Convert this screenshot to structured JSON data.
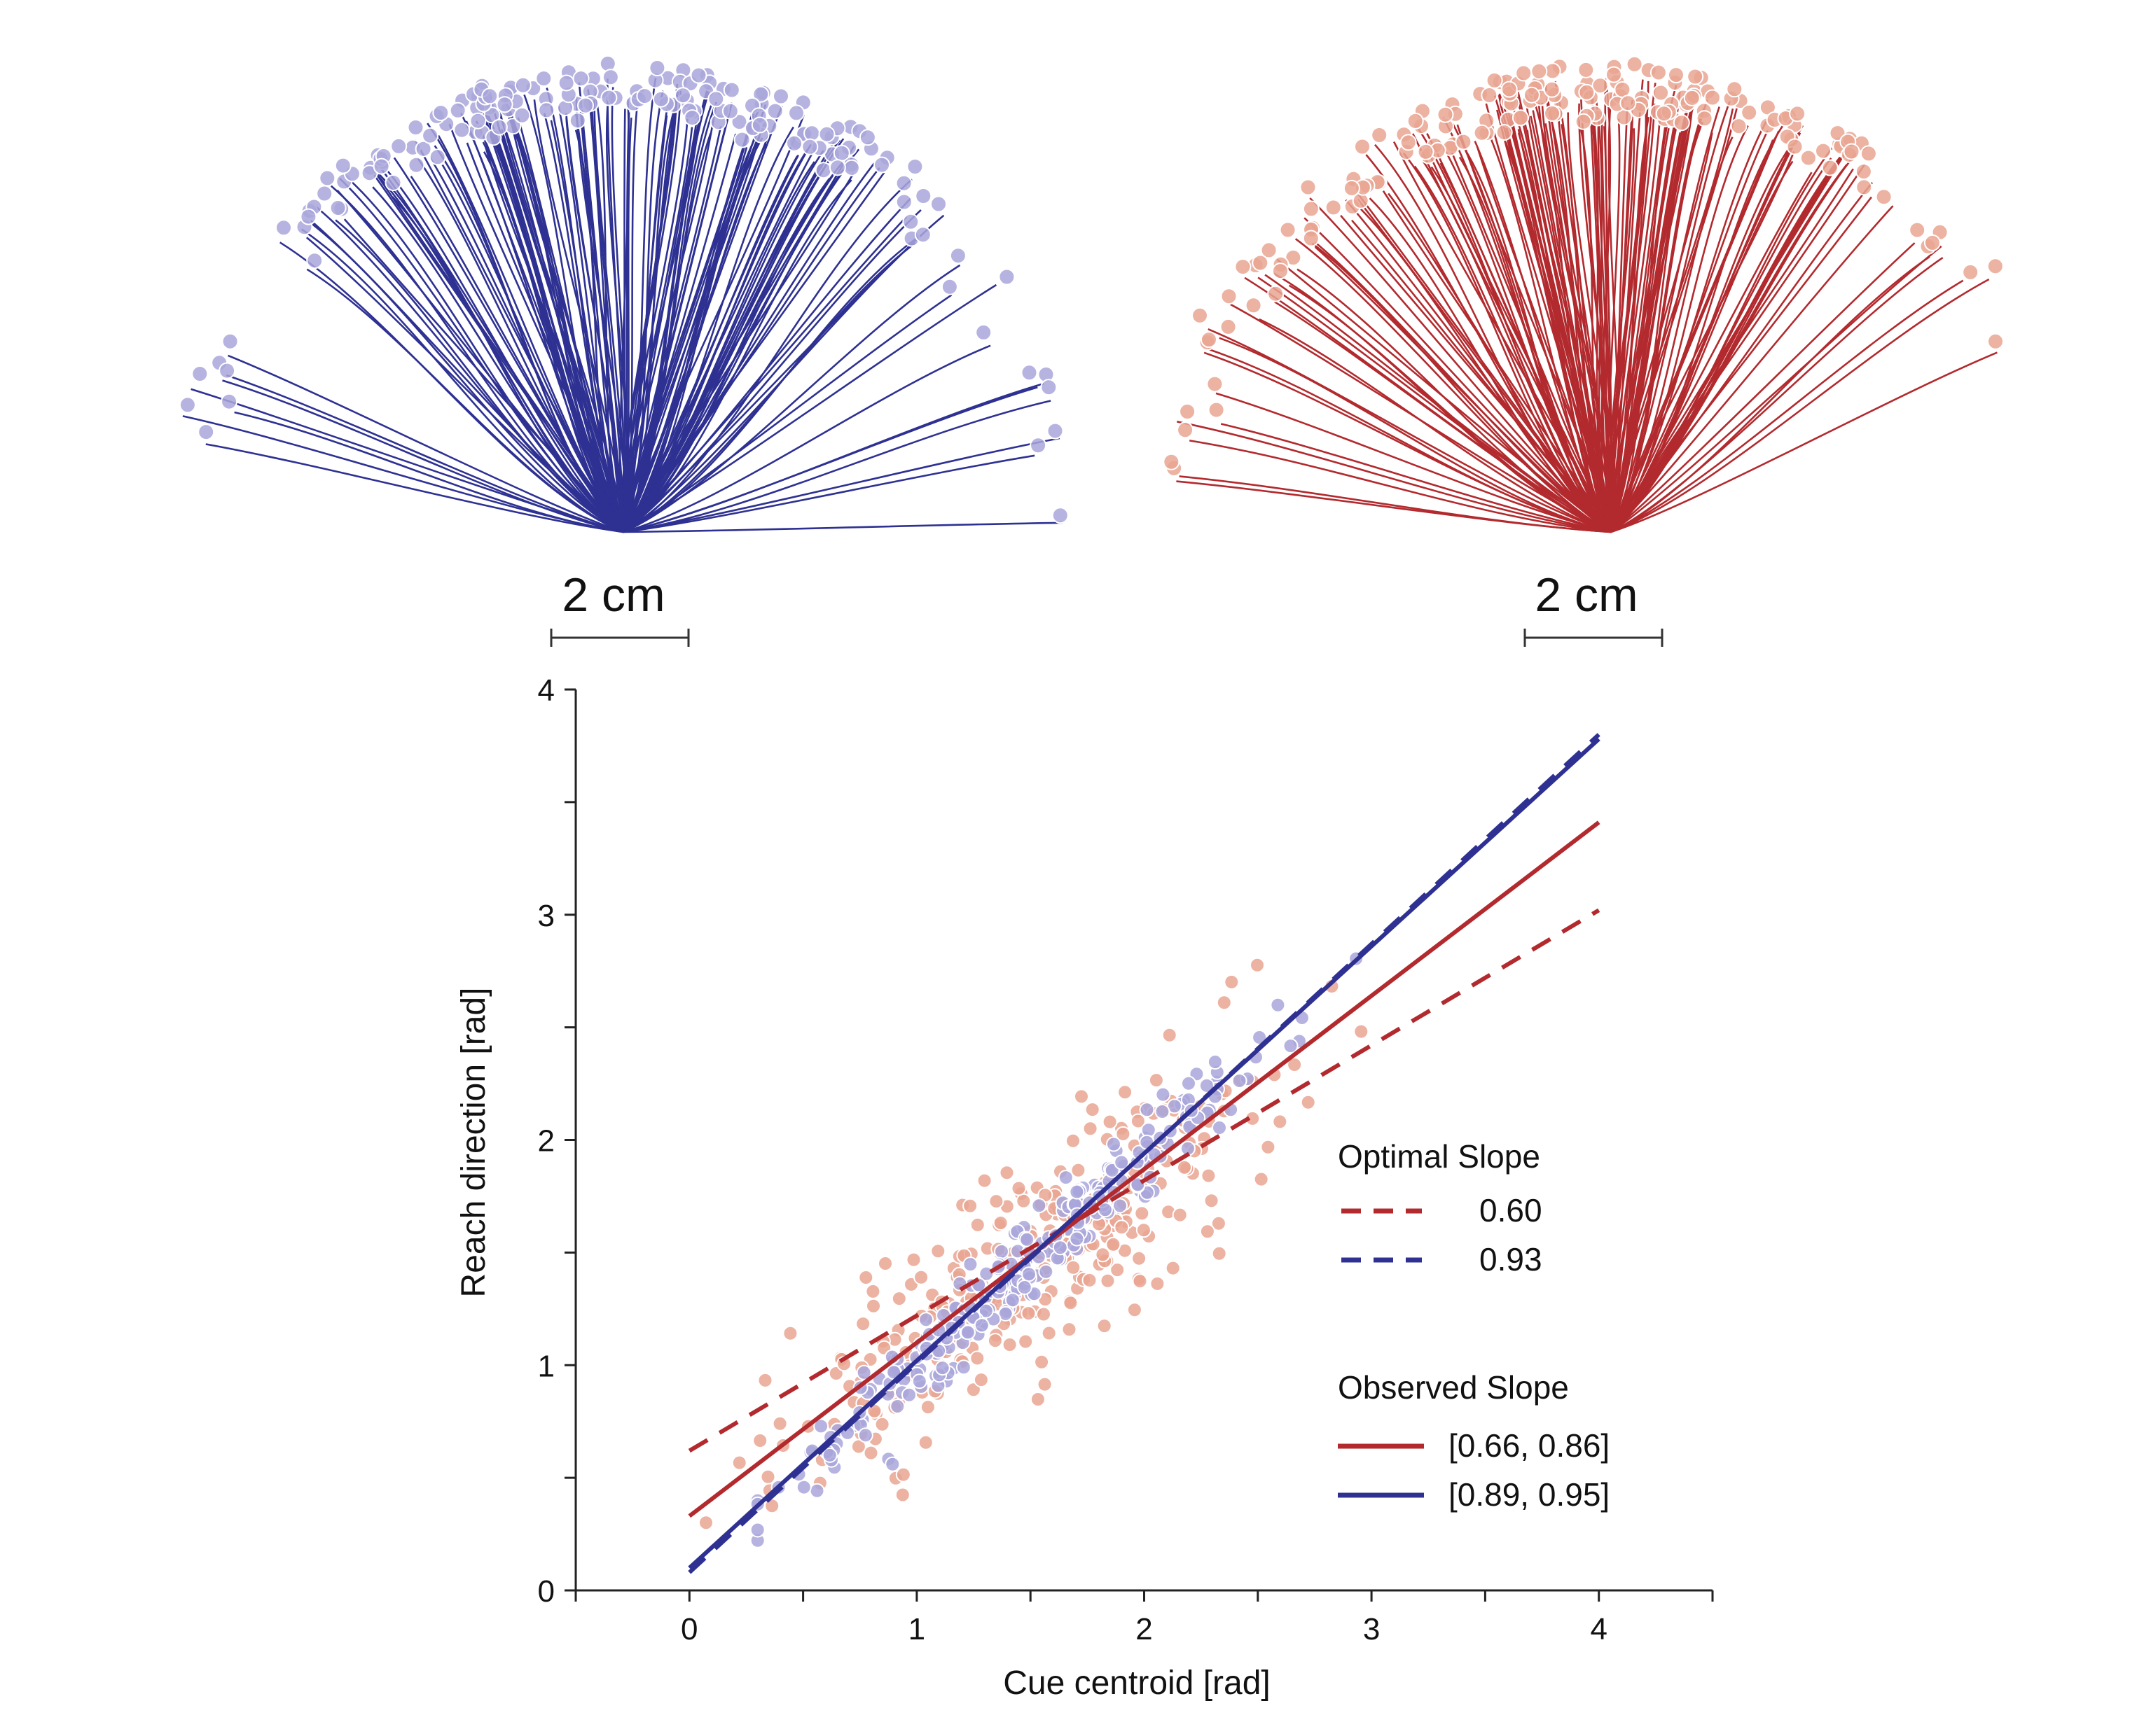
{
  "colors": {
    "red": "#B22A2E",
    "blue": "#2E3192",
    "red_point": "#E9A592",
    "blue_point": "#A9A6DA",
    "axis": "#222222"
  },
  "fans": [
    {
      "name": "blue-trajectories",
      "color": "#2E3192",
      "point_color": "#A9A6DA",
      "scale_label": "2 cm"
    },
    {
      "name": "red-trajectories",
      "color": "#B22A2E",
      "point_color": "#E9A592",
      "scale_label": "2 cm"
    }
  ],
  "chart_data": {
    "type": "scatter",
    "xlabel": "Cue centroid [rad]",
    "ylabel": "Reach direction [rad]",
    "xlim": [
      -0.5,
      4.5
    ],
    "ylim": [
      0,
      4
    ],
    "xticks": [
      0,
      1,
      2,
      3,
      4
    ],
    "yticks": [
      0,
      1,
      2,
      3,
      4
    ],
    "xtick_labels": [
      "0",
      "1",
      "2",
      "3",
      "4"
    ],
    "ytick_labels": [
      "0",
      "1",
      "2",
      "3",
      "4"
    ],
    "series": [
      {
        "color": "#E9A592",
        "x_range": [
          0.0,
          3.4
        ],
        "slope": 0.76,
        "intercept": 0.33,
        "spread": 0.24,
        "n": 320
      },
      {
        "color": "#A9A6DA",
        "x_range": [
          0.3,
          3.35
        ],
        "slope": 0.92,
        "intercept": 0.08,
        "spread": 0.09,
        "n": 280
      }
    ],
    "lines": [
      {
        "kind": "optimal",
        "color": "#B22A2E",
        "dash": true,
        "slope": 0.6,
        "intercept": 0.62,
        "x": [
          0,
          4
        ]
      },
      {
        "kind": "optimal",
        "color": "#2E3192",
        "dash": true,
        "slope": 0.93,
        "intercept": 0.08,
        "x": [
          0,
          4
        ]
      },
      {
        "kind": "observed",
        "color": "#B22A2E",
        "dash": false,
        "slope": 0.77,
        "intercept": 0.33,
        "x": [
          0,
          4
        ]
      },
      {
        "kind": "observed",
        "color": "#2E3192",
        "dash": false,
        "slope": 0.92,
        "intercept": 0.1,
        "x": [
          0,
          4
        ]
      }
    ],
    "legend": {
      "placement": "lower-right",
      "optimal_title": "Optimal Slope",
      "optimal_entries": [
        {
          "label": "0.60",
          "color": "#B22A2E",
          "dash": true
        },
        {
          "label": "0.93",
          "color": "#2E3192",
          "dash": true
        }
      ],
      "observed_title": "Observed Slope",
      "observed_entries": [
        {
          "label": "[0.66, 0.86]",
          "color": "#B22A2E",
          "dash": false
        },
        {
          "label": "[0.89, 0.95]",
          "color": "#2E3192",
          "dash": false
        }
      ]
    }
  }
}
